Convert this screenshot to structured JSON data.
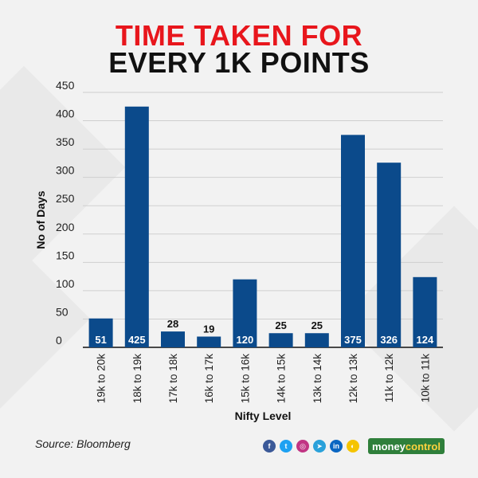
{
  "title_line1": "TIME TAKEN FOR",
  "title_line2": "EVERY 1K POINTS",
  "source": "Source: Bloomberg",
  "brand": {
    "part1": "money",
    "part2": "control",
    "green": "#2f7f3b",
    "yellow": "#ffd23f"
  },
  "social_icons": [
    {
      "name": "facebook-icon",
      "glyph": "f",
      "color": "#3b5998"
    },
    {
      "name": "twitter-icon",
      "glyph": "t",
      "color": "#1da1f2"
    },
    {
      "name": "instagram-icon",
      "glyph": "◎",
      "color": "#c13584"
    },
    {
      "name": "telegram-icon",
      "glyph": "➤",
      "color": "#2aa1da"
    },
    {
      "name": "linkedin-icon",
      "glyph": "in",
      "color": "#0a66c2"
    },
    {
      "name": "snapchat-icon",
      "glyph": "◐",
      "color": "#f5c400"
    }
  ],
  "colors": {
    "bar": "#0b4a8b",
    "title_red": "#e8161c",
    "title_black": "#111111"
  },
  "chart_data": {
    "type": "bar",
    "categories": [
      "19k to 20k",
      "18k to 19k",
      "17k to 18k",
      "16k to 17k",
      "15k to 16k",
      "14k to 15k",
      "13k to 14k",
      "12k to 13k",
      "11k to 12k",
      "10k to 11k"
    ],
    "values": [
      51,
      425,
      28,
      19,
      120,
      25,
      25,
      375,
      326,
      124
    ],
    "xlabel": "Nifty Level",
    "ylabel": "No of Days",
    "ylim": [
      0,
      450
    ],
    "yticks": [
      0,
      50,
      100,
      150,
      200,
      250,
      300,
      350,
      400,
      450
    ],
    "grid": true,
    "legend": "none",
    "data_labels": true
  }
}
